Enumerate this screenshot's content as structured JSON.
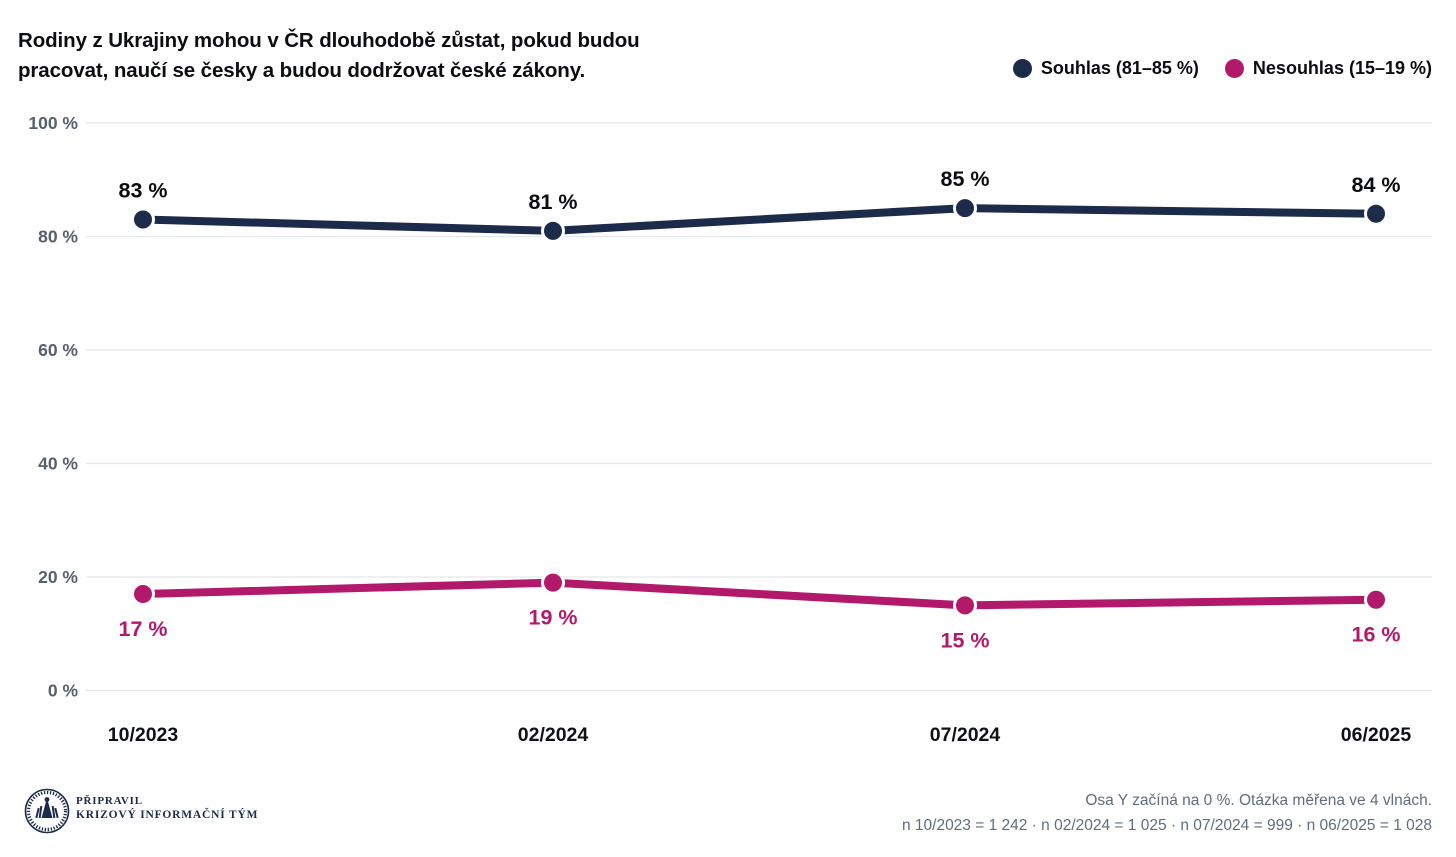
{
  "header": {
    "title": {
      "line1": "Rodiny z Ukrajiny mohou v ČR dlouhodobě zůstat, pokud budou",
      "line2": "pracovat, naučí se česky a budou dodržovat české zákony."
    }
  },
  "chart_data": {
    "type": "line",
    "title": "Rodiny z Ukrajiny mohou v ČR dlouhodobě zůstat, pokud budou pracovat, naučí se česky a budou dodržovat české zákony.",
    "x": [
      "10/2023",
      "02/2024",
      "07/2024",
      "06/2025"
    ],
    "series": [
      {
        "name": "Souhlas (81–85 %)",
        "values": [
          83,
          81,
          85,
          84
        ],
        "color": "#1c2b4a",
        "label_color": "#0c0d10",
        "label_position": "above"
      },
      {
        "name": "Nesouhlas (15–19 %)",
        "values": [
          17,
          19,
          15,
          16
        ],
        "color": "#b2196b",
        "label_color": "#b2196b",
        "label_position": "below"
      }
    ],
    "ylim": [
      0,
      100
    ],
    "yticks": [
      0,
      20,
      40,
      60,
      80,
      100
    ],
    "ytick_suffix": " %",
    "value_label_suffix": " %",
    "grid": true,
    "gridline_color": "#e3e6ea",
    "axis_label_color": "#57606f",
    "x_label_color": "#0e1116",
    "legend_position": "top-right"
  },
  "footer": {
    "credit": {
      "line1": "PŘIPRAVIL",
      "line2": "KRIZOVÝ INFORMAČNÍ TÝM"
    },
    "notes": {
      "line1": "Osa Y začíná na 0 %. Otázka měřena ve 4 vlnách.",
      "line2": "n 10/2023 = 1 242 · n 02/2024 = 1 025 · n 07/2024 = 999 · n 06/2025 = 1 028"
    },
    "logo_name": "krizovy-informacni-tym-seal",
    "logo_color": "#1c2b4a"
  }
}
